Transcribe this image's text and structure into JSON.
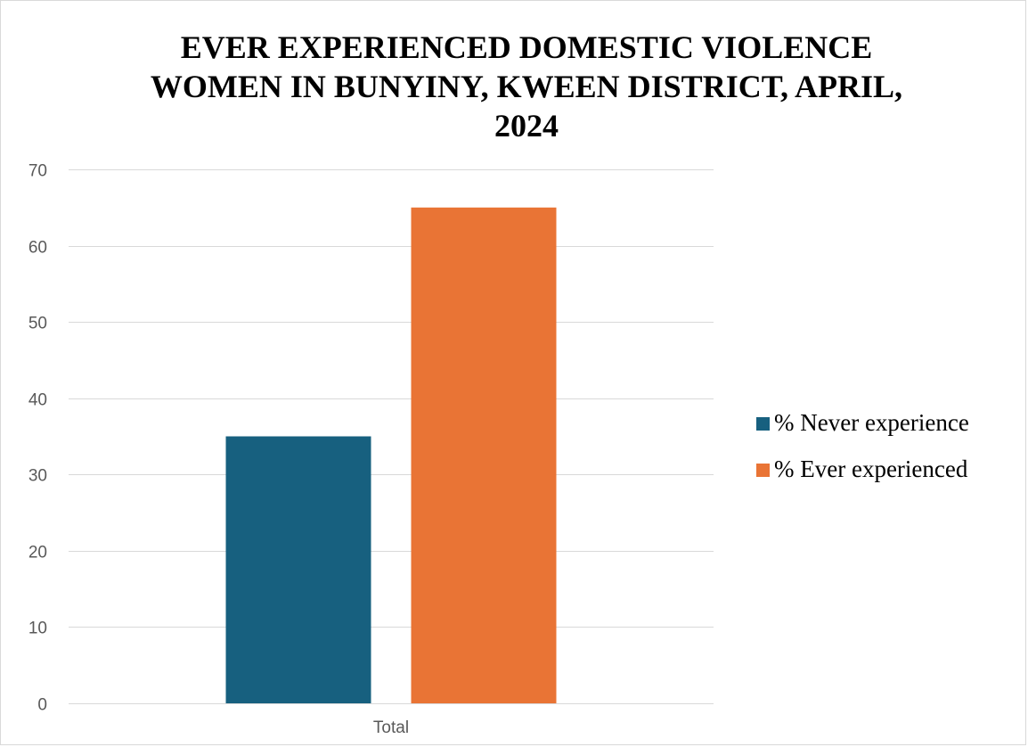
{
  "colors": {
    "never": "#17607f",
    "ever": "#e97435",
    "grid": "#d9d9d9",
    "axis_text": "#595959"
  },
  "chart_data": {
    "type": "bar",
    "title_lines": [
      "EVER EXPERIENCED DOMESTIC VIOLENCE",
      "WOMEN IN BUNYINY, KWEEN DISTRICT, APRIL,",
      "2024"
    ],
    "categories": [
      "Total"
    ],
    "series": [
      {
        "name": "% Never experience",
        "values": [
          35
        ],
        "color": "#17607f"
      },
      {
        "name": "% Ever experienced",
        "values": [
          65
        ],
        "color": "#e97435"
      }
    ],
    "xlabel": "",
    "ylabel": "",
    "ylim": [
      0,
      70
    ],
    "yticks": [
      0,
      10,
      20,
      30,
      40,
      50,
      60,
      70
    ],
    "grid": true,
    "legend_position": "right"
  }
}
